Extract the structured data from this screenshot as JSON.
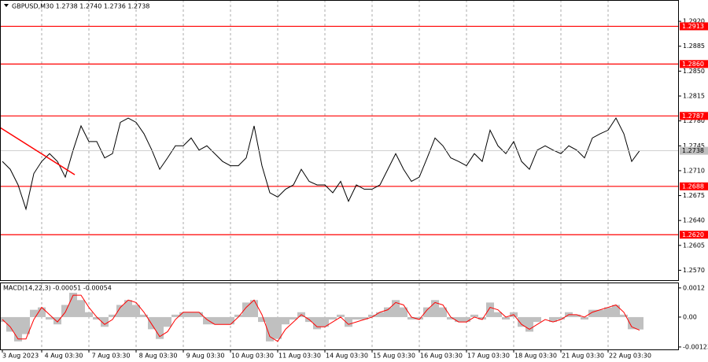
{
  "chart_data": [
    {
      "type": "line",
      "title": "GBPUSD,M30  1.2738 1.2740 1.2736 1.2738",
      "color": "#000000",
      "values": [
        1.2723,
        1.2712,
        1.269,
        1.2656,
        1.2706,
        1.2723,
        1.2734,
        1.2723,
        1.2701,
        1.2739,
        1.2773,
        1.2751,
        1.2751,
        1.2728,
        1.2734,
        1.2778,
        1.2784,
        1.2778,
        1.2762,
        1.2739,
        1.2712,
        1.2728,
        1.2745,
        1.2745,
        1.2756,
        1.2739,
        1.2745,
        1.2734,
        1.2723,
        1.2717,
        1.2717,
        1.2728,
        1.2773,
        1.2717,
        1.2679,
        1.2673,
        1.2684,
        1.269,
        1.2712,
        1.2695,
        1.269,
        1.269,
        1.2679,
        1.2695,
        1.2667,
        1.269,
        1.2684,
        1.2684,
        1.269,
        1.2712,
        1.2734,
        1.2712,
        1.2695,
        1.2701,
        1.2728,
        1.2756,
        1.2745,
        1.2728,
        1.2723,
        1.2717,
        1.2734,
        1.2723,
        1.2767,
        1.2745,
        1.2734,
        1.2751,
        1.2723,
        1.2712,
        1.2739,
        1.2745,
        1.2739,
        1.2734,
        1.2745,
        1.2739,
        1.2728,
        1.2756,
        1.2762,
        1.2767,
        1.2784,
        1.2762,
        1.2723,
        1.2738
      ],
      "ylim": [
        1.2555,
        1.295
      ],
      "yticks": [
        {
          "value": 1.292,
          "label": "1.2920"
        },
        1.2885,
        {
          "value": 1.285,
          "label": "1.2850"
        },
        1.2815,
        {
          "value": 1.278,
          "label": "1.2780"
        },
        1.2745,
        {
          "value": 1.271,
          "label": "1.2710"
        },
        1.2675,
        {
          "value": 1.264,
          "label": "1.2640"
        },
        1.2605,
        {
          "value": 1.257,
          "label": "1.2570"
        }
      ],
      "xticks": [
        {
          "value": 0,
          "label": "3 Aug 2023"
        },
        {
          "value": 5,
          "label": "4 Aug 03:30"
        },
        {
          "value": 11,
          "label": "7 Aug 03:30"
        },
        {
          "value": 17,
          "label": "8 Aug 03:30"
        },
        {
          "value": 23,
          "label": "9 Aug 03:30"
        },
        {
          "value": 29,
          "label": "10 Aug 03:30"
        },
        {
          "value": 35,
          "label": "11 Aug 03:30"
        },
        {
          "value": 41,
          "label": "14 Aug 03:30"
        },
        {
          "value": 47,
          "label": "15 Aug 03:30"
        },
        {
          "value": 53,
          "label": "16 Aug 03:30"
        },
        {
          "value": 59,
          "label": "17 Aug 03:30"
        },
        {
          "value": 65,
          "label": "18 Aug 03:30"
        },
        {
          "value": 71,
          "label": "21 Aug 03:30"
        },
        {
          "value": 77,
          "label": "22 Aug 03:30"
        }
      ],
      "levels": [
        1.2913,
        {
          "value": 1.286,
          "label": "1.2860"
        },
        1.2787,
        1.2688,
        {
          "value": 1.262,
          "label": "1.2620"
        }
      ],
      "level_color": "#ff0000",
      "last_price": 1.2738
    },
    {
      "type": "macd",
      "title": "MACD(14,22,3) -0.00051 -0.00054",
      "ylim": [
        -0.00133,
        0.00139
      ],
      "yticks": [
        {
          "value": 0.0012,
          "label": "0.0012"
        },
        {
          "value": 0,
          "label": "0.00"
        },
        {
          "value": -0.00123,
          "label": "-0.00123"
        }
      ],
      "series": [
        {
          "color": "#c0c0c0",
          "values": [
            -0.0002,
            -0.0006,
            -0.001,
            -0.0007,
            0.0003,
            0.0004,
            -0.0001,
            -0.0003,
            0.0005,
            0.001,
            0.0007,
            0.0002,
            -0.0001,
            -0.0004,
            0.0001,
            0.0005,
            0.0007,
            0.0005,
            0.0001,
            -0.0005,
            -0.0009,
            -0.0004,
            0.0001,
            0.0002,
            0.0002,
            0.0002,
            -0.0003,
            -0.0003,
            -0.0003,
            -0.0003,
            0.0001,
            0.0006,
            0.0007,
            -0.0002,
            -0.001,
            -0.0009,
            -0.0003,
            -0.0001,
            0.0002,
            -0.0002,
            -0.0005,
            -0.0004,
            -0.0001,
            0.0001,
            -0.0004,
            -0.0001,
            -0.0001,
            0.0001,
            0.0002,
            0.0004,
            0.0007,
            0.0004,
            -0.0001,
            -0.0001,
            0.0004,
            0.0007,
            0.0004,
            -0.0001,
            -0.0002,
            -0.0002,
            0.0001,
            -0.0001,
            0.0006,
            0.0002,
            -0.0001,
            0.0002,
            -0.0004,
            -0.0006,
            -0.0002,
            0.0,
            -0.0002,
            -0.0001,
            0.0002,
            0.0001,
            -0.0001,
            0.0003,
            0.0003,
            0.0004,
            0.0005,
            0.0001,
            -0.0005,
            -0.00051
          ]
        },
        {
          "color": "#ff0000",
          "values": [
            -0.0001,
            -0.0004,
            -0.0009,
            -0.0009,
            -0.0001,
            0.0004,
            0.0001,
            -0.0002,
            0.0002,
            0.0009,
            0.0009,
            0.0004,
            0.0,
            -0.0003,
            -0.0001,
            0.0004,
            0.0007,
            0.0006,
            0.0002,
            -0.0003,
            -0.0008,
            -0.0006,
            -0.0001,
            0.0002,
            0.0002,
            0.0002,
            -0.0001,
            -0.0003,
            -0.0003,
            -0.0003,
            0.0,
            0.0004,
            0.0007,
            0.0001,
            -0.0008,
            -0.001,
            -0.0005,
            -0.0002,
            0.0001,
            -0.0001,
            -0.0004,
            -0.0004,
            -0.0002,
            0.0,
            -0.0003,
            -0.0002,
            -0.0001,
            0.0,
            0.0002,
            0.0003,
            0.0006,
            0.0005,
            0.0,
            -0.0001,
            0.0003,
            0.0006,
            0.0005,
            0.0,
            -0.0002,
            -0.0002,
            0.0,
            -0.0001,
            0.0004,
            0.0003,
            0.0,
            0.0001,
            -0.0003,
            -0.0005,
            -0.0003,
            -0.0001,
            -0.0002,
            -0.0001,
            0.0001,
            0.0001,
            0.0,
            0.0002,
            0.0003,
            0.0004,
            0.0005,
            0.0002,
            -0.0004,
            -0.00054
          ]
        }
      ]
    }
  ]
}
